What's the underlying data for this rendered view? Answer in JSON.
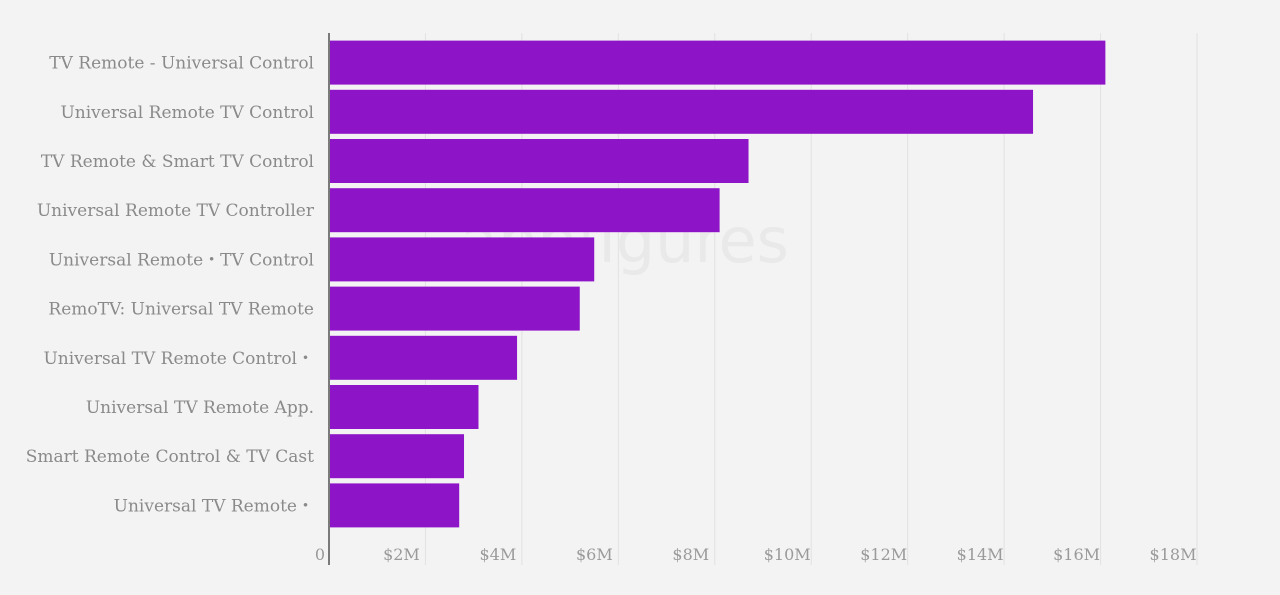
{
  "watermark": "appfigures",
  "chart_data": {
    "type": "bar",
    "orientation": "horizontal",
    "categories": [
      "TV Remote - Universal Control",
      "Universal Remote TV Control",
      "TV Remote & Smart TV Control",
      "Universal Remote TV Controller",
      "Universal Remote・TV Control",
      "RemoTV: Universal TV Remote",
      "Universal TV Remote Control・",
      "Universal TV Remote App.",
      "Smart Remote Control & TV Cast",
      "Universal TV Remote・"
    ],
    "values": [
      16100000,
      14600000,
      8700000,
      8100000,
      5500000,
      5200000,
      3900000,
      3100000,
      2800000,
      2700000
    ],
    "xlim": [
      0,
      18000000
    ],
    "x_ticks": [
      {
        "value": 0,
        "label": "0"
      },
      {
        "value": 2000000,
        "label": "$2M"
      },
      {
        "value": 4000000,
        "label": "$4M"
      },
      {
        "value": 6000000,
        "label": "$6M"
      },
      {
        "value": 8000000,
        "label": "$8M"
      },
      {
        "value": 10000000,
        "label": "$10M"
      },
      {
        "value": 12000000,
        "label": "$12M"
      },
      {
        "value": 14000000,
        "label": "$14M"
      },
      {
        "value": 16000000,
        "label": "$16M"
      },
      {
        "value": 18000000,
        "label": "$18M"
      }
    ],
    "grid": true,
    "bar_color": "#8e14c8",
    "title": "",
    "xlabel": "",
    "ylabel": ""
  }
}
